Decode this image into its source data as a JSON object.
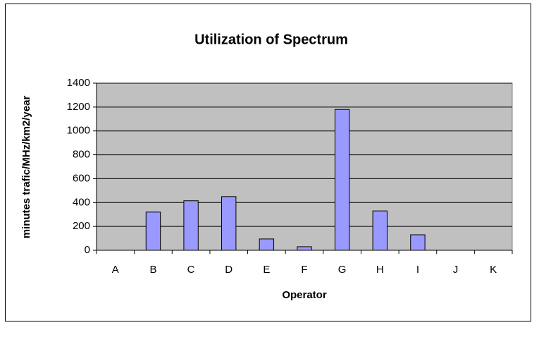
{
  "chart_data": {
    "type": "bar",
    "title": "Utilization of Spectrum",
    "x_label": "Operator",
    "y_label": "minutes trafic/MHz/km2/year",
    "categories": [
      "A",
      "B",
      "C",
      "D",
      "E",
      "F",
      "G",
      "H",
      "I",
      "J",
      "K"
    ],
    "values": [
      0,
      320,
      415,
      450,
      95,
      30,
      1180,
      330,
      130,
      0,
      0
    ],
    "color": "#9999ff",
    "plot_background": "#c0c0c0",
    "ylim": [
      0,
      1400
    ],
    "yticks": [
      0,
      200,
      400,
      600,
      800,
      1000,
      1200,
      1400
    ],
    "grid": true
  }
}
